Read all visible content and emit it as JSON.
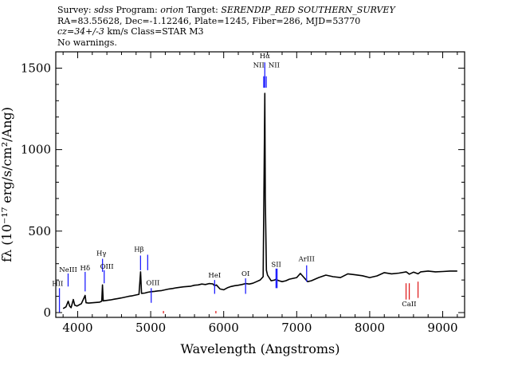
{
  "header": {
    "line1": {
      "survey_label": "Survey:",
      "survey": "sdss",
      "program_label": "Program:",
      "program": "orion",
      "target_label": "Target:",
      "target": "SERENDIP_RED SOUTHERN_SURVEY"
    },
    "line2": "RA=83.55628, Dec=-1.12246, Plate=1245, Fiber=286, MJD=53770",
    "line3": {
      "cz_label": "cz=",
      "cz": "34+/-3",
      "cz_units": "km/s",
      "class_text": "Class=STAR M3"
    },
    "line4": "No warnings."
  },
  "colors": {
    "spectrum": "#000000",
    "emission": "#2020ff",
    "absorption": "#e02020"
  },
  "chart_data": {
    "type": "line",
    "title": "",
    "xlabel": "Wavelength (Angstroms)",
    "ylabel": "fλ (10⁻¹⁷ erg/s/cm²/Ang)",
    "xlim": [
      3700,
      9300
    ],
    "ylim": [
      0,
      1600
    ],
    "xticks": [
      4000,
      5000,
      6000,
      7000,
      8000,
      9000
    ],
    "yticks": [
      0,
      500,
      1000,
      1500
    ],
    "spectrum": [
      [
        3800,
        25
      ],
      [
        3840,
        35
      ],
      [
        3870,
        70
      ],
      [
        3890,
        40
      ],
      [
        3910,
        30
      ],
      [
        3940,
        80
      ],
      [
        3960,
        45
      ],
      [
        3990,
        40
      ],
      [
        4050,
        55
      ],
      [
        4102,
        105
      ],
      [
        4115,
        60
      ],
      [
        4150,
        58
      ],
      [
        4200,
        60
      ],
      [
        4250,
        62
      ],
      [
        4300,
        64
      ],
      [
        4330,
        70
      ],
      [
        4340,
        170
      ],
      [
        4350,
        72
      ],
      [
        4400,
        75
      ],
      [
        4450,
        78
      ],
      [
        4500,
        82
      ],
      [
        4550,
        86
      ],
      [
        4600,
        90
      ],
      [
        4650,
        95
      ],
      [
        4700,
        100
      ],
      [
        4750,
        103
      ],
      [
        4800,
        108
      ],
      [
        4840,
        112
      ],
      [
        4861,
        250
      ],
      [
        4875,
        118
      ],
      [
        4920,
        120
      ],
      [
        4960,
        125
      ],
      [
        5007,
        128
      ],
      [
        5050,
        130
      ],
      [
        5100,
        133
      ],
      [
        5150,
        135
      ],
      [
        5200,
        140
      ],
      [
        5250,
        145
      ],
      [
        5300,
        148
      ],
      [
        5350,
        152
      ],
      [
        5400,
        155
      ],
      [
        5450,
        158
      ],
      [
        5500,
        160
      ],
      [
        5550,
        162
      ],
      [
        5600,
        168
      ],
      [
        5650,
        170
      ],
      [
        5700,
        175
      ],
      [
        5750,
        172
      ],
      [
        5800,
        178
      ],
      [
        5850,
        176
      ],
      [
        5876,
        165
      ],
      [
        5900,
        170
      ],
      [
        5950,
        145
      ],
      [
        6000,
        140
      ],
      [
        6050,
        152
      ],
      [
        6100,
        160
      ],
      [
        6150,
        165
      ],
      [
        6200,
        168
      ],
      [
        6250,
        172
      ],
      [
        6300,
        178
      ],
      [
        6350,
        175
      ],
      [
        6400,
        180
      ],
      [
        6450,
        190
      ],
      [
        6500,
        200
      ],
      [
        6540,
        220
      ],
      [
        6555,
        900
      ],
      [
        6563,
        1345
      ],
      [
        6570,
        700
      ],
      [
        6585,
        260
      ],
      [
        6600,
        230
      ],
      [
        6650,
        195
      ],
      [
        6700,
        200
      ],
      [
        6717,
        205
      ],
      [
        6731,
        200
      ],
      [
        6760,
        195
      ],
      [
        6800,
        190
      ],
      [
        6850,
        195
      ],
      [
        6900,
        205
      ],
      [
        6950,
        210
      ],
      [
        7000,
        215
      ],
      [
        7050,
        240
      ],
      [
        7100,
        215
      ],
      [
        7150,
        190
      ],
      [
        7200,
        195
      ],
      [
        7300,
        215
      ],
      [
        7400,
        230
      ],
      [
        7500,
        220
      ],
      [
        7600,
        215
      ],
      [
        7700,
        238
      ],
      [
        7800,
        232
      ],
      [
        7900,
        226
      ],
      [
        8000,
        215
      ],
      [
        8100,
        225
      ],
      [
        8200,
        245
      ],
      [
        8300,
        238
      ],
      [
        8400,
        242
      ],
      [
        8500,
        250
      ],
      [
        8542,
        236
      ],
      [
        8600,
        248
      ],
      [
        8662,
        238
      ],
      [
        8700,
        250
      ],
      [
        8800,
        255
      ],
      [
        8900,
        250
      ],
      [
        9000,
        252
      ],
      [
        9100,
        255
      ],
      [
        9200,
        255
      ]
    ],
    "lines": [
      {
        "name": "HII",
        "wavelength": 3750,
        "color": "blue",
        "y_top": 150,
        "y_bottom": 0,
        "label_x": 3725,
        "label_y": 165
      },
      {
        "name": "NeIII",
        "wavelength": 3869,
        "color": "blue",
        "y_top": 240,
        "y_bottom": 160,
        "label_x": 3870,
        "label_y": 250
      },
      {
        "name": "Hδ",
        "wavelength": 4102,
        "color": "blue",
        "y_top": 250,
        "y_bottom": 130,
        "label_x": 4102,
        "label_y": 260
      },
      {
        "name": "Hγ",
        "wavelength": 4340,
        "color": "blue",
        "y_top": 330,
        "y_bottom": 250,
        "label_x": 4325,
        "label_y": 350
      },
      {
        "name": "OIII",
        "wavelength": 4363,
        "color": "blue",
        "y_top": 260,
        "y_bottom": 180,
        "label_x": 4400,
        "label_y": 270
      },
      {
        "name": "Hβ",
        "wavelength": 4861,
        "color": "blue",
        "y_top": 350,
        "y_bottom": 260,
        "label_x": 4840,
        "label_y": 375
      },
      {
        "name": "",
        "wavelength": 4959,
        "color": "blue",
        "y_top": 355,
        "y_bottom": 260
      },
      {
        "name": "OIII",
        "wavelength": 5007,
        "color": "blue",
        "y_top": 150,
        "y_bottom": 60,
        "label_x": 5030,
        "label_y": 170
      },
      {
        "name": "HeI",
        "wavelength": 5876,
        "color": "blue",
        "y_top": 200,
        "y_bottom": 115,
        "label_x": 5876,
        "label_y": 215
      },
      {
        "name": "OI",
        "wavelength": 6300,
        "color": "blue",
        "y_top": 210,
        "y_bottom": 115,
        "label_x": 6300,
        "label_y": 225
      },
      {
        "name": "NII",
        "wavelength": 6548,
        "color": "blue",
        "y_top": 1450,
        "y_bottom": 1380,
        "label_x": 6480,
        "label_y": 1505
      },
      {
        "name": "Hα",
        "wavelength": 6563,
        "color": "blue",
        "y_top": 1535,
        "y_bottom": 1380,
        "label_x": 6563,
        "label_y": 1560
      },
      {
        "name": "NII",
        "wavelength": 6583,
        "color": "blue",
        "y_top": 1450,
        "y_bottom": 1380,
        "label_x": 6690,
        "label_y": 1505
      },
      {
        "name": "SII",
        "wavelength": 6717,
        "color": "blue",
        "y_top": 270,
        "y_bottom": 150,
        "label_x": 6720,
        "label_y": 282
      },
      {
        "name": "",
        "wavelength": 6731,
        "color": "blue",
        "y_top": 270,
        "y_bottom": 150
      },
      {
        "name": "ArIII",
        "wavelength": 7136,
        "color": "blue",
        "y_top": 290,
        "y_bottom": 190,
        "label_x": 7136,
        "label_y": 315
      },
      {
        "name": "",
        "wavelength": 5175,
        "color": "red",
        "y_top": 10,
        "y_bottom": -5
      },
      {
        "name": "",
        "wavelength": 5893,
        "color": "red",
        "y_top": 10,
        "y_bottom": -5
      },
      {
        "name": "CaII",
        "wavelength": 8498,
        "color": "red",
        "y_top": 180,
        "y_bottom": 80,
        "label_x": 8540,
        "label_y": 40
      },
      {
        "name": "",
        "wavelength": 8542,
        "color": "red",
        "y_top": 180,
        "y_bottom": 80
      },
      {
        "name": "",
        "wavelength": 8662,
        "color": "red",
        "y_top": 190,
        "y_bottom": 90
      }
    ]
  }
}
